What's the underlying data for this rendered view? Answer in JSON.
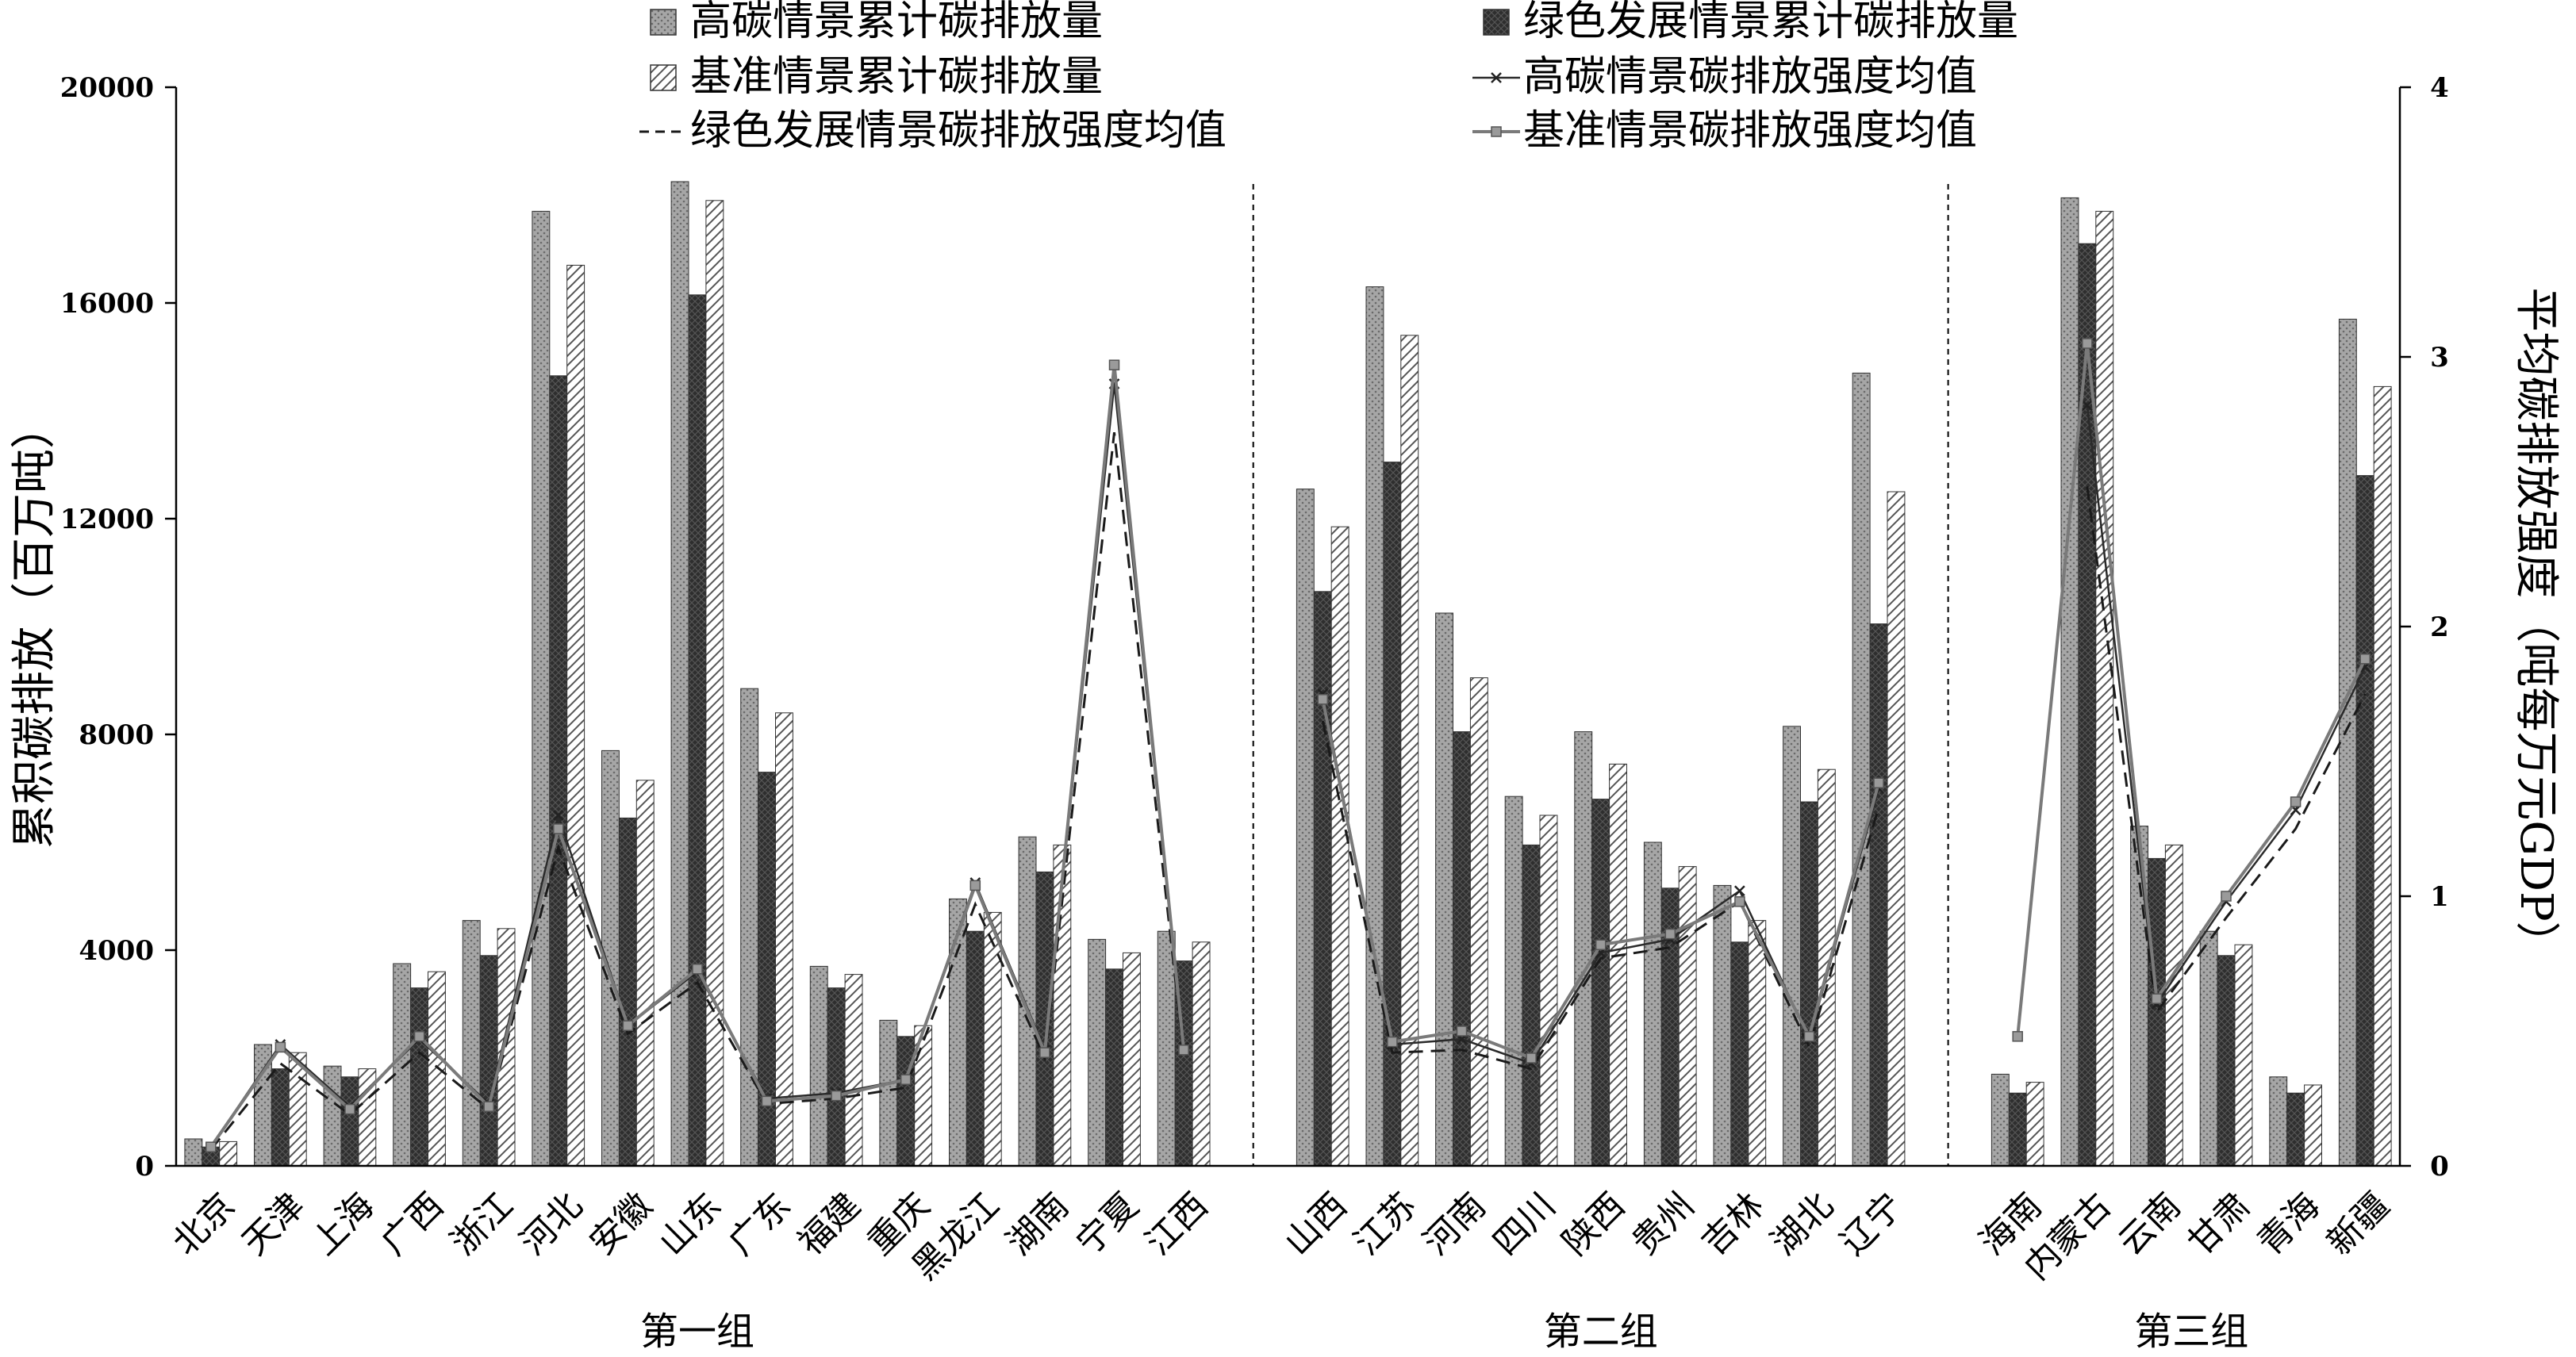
{
  "chart_data": {
    "type": "bar",
    "left_axis": {
      "label": "累积碳排放（百万吨）",
      "range": [
        0,
        20000
      ],
      "ticks": [
        "0",
        "4000",
        "8000",
        "12000",
        "16000",
        "20000"
      ]
    },
    "right_axis": {
      "label": "平均碳排放强度（吨每万元GDP）",
      "range": [
        0,
        4
      ],
      "ticks": [
        "0",
        "1",
        "2",
        "3",
        "4"
      ]
    },
    "groups": [
      {
        "label": "第一组",
        "categories": [
          "北京",
          "天津",
          "上海",
          "广西",
          "浙江",
          "河北",
          "安徽",
          "山东",
          "广东",
          "福建",
          "重庆",
          "黑龙江",
          "湖南",
          "宁夏",
          "江西"
        ],
        "high_emission": [
          500,
          2250,
          1850,
          3750,
          4550,
          17700,
          7700,
          18250,
          8850,
          3700,
          2700,
          4950,
          6100,
          4200,
          4350
        ],
        "green_emission": [
          350,
          1800,
          1650,
          3300,
          3900,
          14650,
          6450,
          16150,
          7300,
          3300,
          2400,
          4350,
          5450,
          3650,
          3800
        ],
        "base_emission": [
          450,
          2100,
          1800,
          3600,
          4400,
          16700,
          7150,
          17900,
          8400,
          3550,
          2600,
          4700,
          5950,
          3950,
          4150
        ],
        "high_intensity": [
          0.07,
          0.45,
          0.22,
          0.47,
          0.23,
          1.3,
          0.52,
          0.72,
          0.25,
          0.27,
          0.32,
          1.05,
          0.43,
          2.9,
          0.44
        ],
        "green_intensity": [
          0.06,
          0.38,
          0.19,
          0.42,
          0.21,
          1.18,
          0.49,
          0.68,
          0.23,
          0.25,
          0.29,
          0.97,
          0.4,
          2.72,
          0.41
        ],
        "base_intensity": [
          0.07,
          0.44,
          0.21,
          0.48,
          0.22,
          1.25,
          0.52,
          0.73,
          0.24,
          0.26,
          0.32,
          1.04,
          0.42,
          2.97,
          0.43
        ]
      },
      {
        "label": "第二组",
        "categories": [
          "山西",
          "江苏",
          "河南",
          "四川",
          "陕西",
          "贵州",
          "吉林",
          "湖北",
          "辽宁"
        ],
        "high_emission": [
          12550,
          16300,
          10250,
          6850,
          8050,
          6000,
          5200,
          8150,
          14700
        ],
        "green_emission": [
          10650,
          13050,
          8050,
          5950,
          6800,
          5150,
          4150,
          6750,
          10050
        ],
        "base_emission": [
          11850,
          15400,
          9050,
          6500,
          7450,
          5550,
          4550,
          7350,
          12500
        ],
        "high_intensity": [
          1.75,
          0.45,
          0.47,
          0.38,
          0.79,
          0.84,
          1.02,
          0.47,
          1.4
        ],
        "green_intensity": [
          1.65,
          0.42,
          0.43,
          0.36,
          0.77,
          0.81,
          0.98,
          0.44,
          1.33
        ],
        "base_intensity": [
          1.73,
          0.46,
          0.5,
          0.4,
          0.82,
          0.86,
          0.98,
          0.48,
          1.42
        ]
      },
      {
        "label": "第三组",
        "categories": [
          "海南",
          "内蒙古",
          "云南",
          "甘肃",
          "青海",
          "新疆"
        ],
        "high_emission": [
          1700,
          17950,
          6300,
          4350,
          1650,
          15700
        ],
        "green_emission": [
          1350,
          17100,
          5700,
          3900,
          1350,
          12800
        ],
        "base_emission": [
          1550,
          17700,
          5950,
          4100,
          1500,
          14450
        ],
        "high_intensity": [
          null,
          2.82,
          0.6,
          0.98,
          1.32,
          1.85
        ],
        "green_intensity": [
          null,
          2.52,
          0.57,
          0.92,
          1.25,
          1.75
        ],
        "base_intensity": [
          0.48,
          3.05,
          0.62,
          1.0,
          1.35,
          1.88
        ]
      }
    ],
    "legend": [
      {
        "key": "high_emission",
        "label": "高碳情景累计碳排放量"
      },
      {
        "key": "green_emission",
        "label": "绿色发展情景累计碳排放量"
      },
      {
        "key": "base_emission",
        "label": "基准情景累计碳排放量"
      },
      {
        "key": "high_intensity",
        "label": "高碳情景碳排放强度均值"
      },
      {
        "key": "green_intensity",
        "label": "绿色发展情景碳排放强度均值"
      },
      {
        "key": "base_intensity",
        "label": "基准情景碳排放强度均值"
      }
    ],
    "legend_position": "top",
    "grid": false
  }
}
